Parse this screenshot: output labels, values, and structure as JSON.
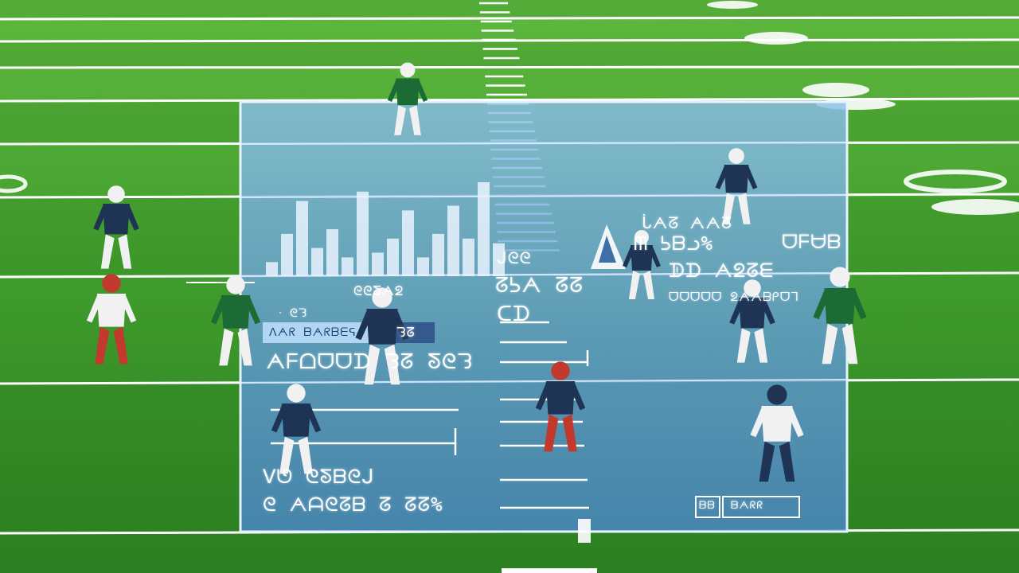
{
  "scene": {
    "colors": {
      "turf_light": "#4aa834",
      "turf_dark": "#2f8a25",
      "line": "#ffffff",
      "panel": "#6ba6d8",
      "panel_edge": "#d8ecff",
      "player_dark": "#1f3355",
      "player_white": "#f1f1f1",
      "player_green": "#1c6a34",
      "player_red": "#c23a2e"
    },
    "hud_texts": {
      "stat_row_1": "ᒑᗅᘔ ᗅᗅᘔ",
      "stat_row_2": "ᗰ ᕊᗷᓗ%",
      "stat_row_3": "ᗫᗪ ᗅᘖᘔᗴ",
      "stat_row_4": "ᗜᗜᗜᗜᗜ ᘖᗅᗅᗷᑭᗜᒣ",
      "stat_right": "ᗜᖴᗨᗷ",
      "left_caption": "ᘓᘓᘕᗅᘖ",
      "left_small": "ᐧ ᘓᘊ",
      "left_bar_label": "ᐱᗅᖇ ᗷᗅᖇᗷᗴᕋ",
      "left_bar_value": "ᘊᘔ",
      "left_big": "ᗅᖴᗝᗜᗜᗪ ᘊᘔ ᘕᘓᘊ",
      "center_1": "ᒍᘓᘓ",
      "center_2": "ᘔᕊᗅ ᘔᘔ",
      "center_3": "ᑕᗪ",
      "bottom_1": "ᐯᘎ ᘓᘕᗷᘓᒍ",
      "bottom_2": "ᘓ ᗅᗩᘓᘔᗷ ᘔ ᘔᘔ%",
      "badge": "ᗷᗅᖇᖇ",
      "badge_small": "ᗷᗷ"
    },
    "chart_bars": [
      0.15,
      0.45,
      0.8,
      0.3,
      0.5,
      0.2,
      0.9,
      0.25,
      0.4,
      0.7,
      0.2,
      0.45,
      0.75,
      0.4,
      1.0,
      0.35
    ]
  }
}
